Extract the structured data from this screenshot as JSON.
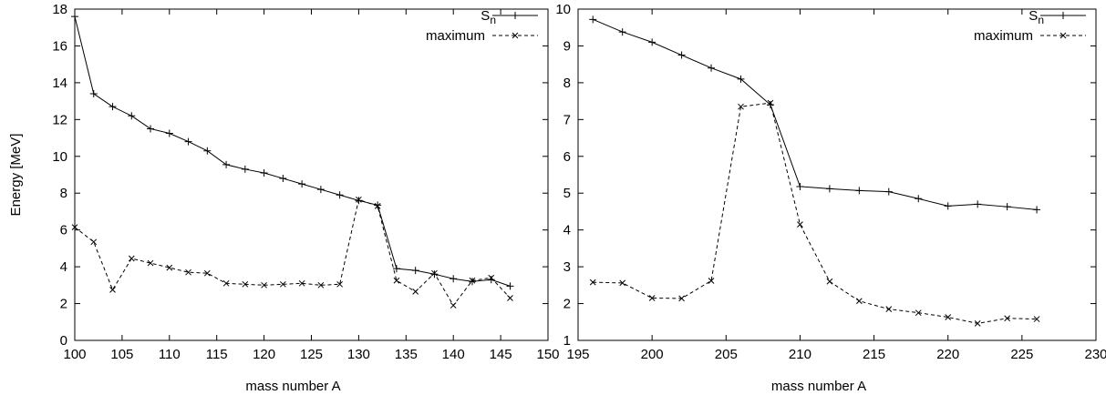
{
  "chart_data": [
    {
      "type": "line",
      "xlabel": "mass number A",
      "ylabel": "Energy [MeV]",
      "xlim": [
        100,
        150
      ],
      "ylim": [
        0,
        18
      ],
      "xticks": [
        100,
        105,
        110,
        115,
        120,
        125,
        130,
        135,
        140,
        145,
        150
      ],
      "yticks": [
        0,
        2,
        4,
        6,
        8,
        10,
        12,
        14,
        16,
        18
      ],
      "grid": false,
      "legend_position": "top-right",
      "series": [
        {
          "name": "S",
          "name_sub": "n",
          "style": "solid",
          "marker": "+",
          "x": [
            100,
            102,
            104,
            106,
            108,
            110,
            112,
            114,
            116,
            118,
            120,
            122,
            124,
            126,
            128,
            130,
            132,
            134,
            136,
            138,
            140,
            142,
            144,
            146
          ],
          "y": [
            17.6,
            13.4,
            12.7,
            12.2,
            11.5,
            11.25,
            10.8,
            10.3,
            9.55,
            9.3,
            9.1,
            8.8,
            8.5,
            8.2,
            7.9,
            7.6,
            7.35,
            3.9,
            3.8,
            3.6,
            3.35,
            3.2,
            3.3,
            2.95
          ]
        },
        {
          "name": "maximum",
          "style": "dashed",
          "marker": "x",
          "x": [
            100,
            102,
            104,
            106,
            108,
            110,
            112,
            114,
            116,
            118,
            120,
            122,
            124,
            126,
            128,
            130,
            132,
            134,
            136,
            138,
            140,
            142,
            144,
            146
          ],
          "y": [
            6.15,
            5.35,
            2.75,
            4.45,
            4.2,
            3.95,
            3.7,
            3.65,
            3.1,
            3.05,
            3.0,
            3.05,
            3.1,
            3.0,
            3.05,
            7.65,
            7.3,
            3.25,
            2.65,
            3.65,
            1.9,
            3.25,
            3.4,
            2.3
          ]
        }
      ]
    },
    {
      "type": "line",
      "xlabel": "mass number A",
      "ylabel": "",
      "xlim": [
        195,
        230
      ],
      "ylim": [
        1,
        10
      ],
      "xticks": [
        195,
        200,
        205,
        210,
        215,
        220,
        225,
        230
      ],
      "yticks": [
        1,
        2,
        3,
        4,
        5,
        6,
        7,
        8,
        9,
        10
      ],
      "grid": false,
      "legend_position": "top-right",
      "series": [
        {
          "name": "S",
          "name_sub": "n",
          "style": "solid",
          "marker": "+",
          "x": [
            196,
            198,
            200,
            202,
            204,
            206,
            208,
            210,
            212,
            214,
            216,
            218,
            220,
            222,
            224,
            226
          ],
          "y": [
            9.72,
            9.38,
            9.1,
            8.75,
            8.4,
            8.1,
            7.4,
            5.18,
            5.12,
            5.07,
            5.04,
            4.85,
            4.65,
            4.7,
            4.63,
            4.55
          ]
        },
        {
          "name": "maximum",
          "style": "dashed",
          "marker": "x",
          "x": [
            196,
            198,
            200,
            202,
            204,
            206,
            208,
            210,
            212,
            214,
            216,
            218,
            220,
            222,
            224,
            226
          ],
          "y": [
            2.58,
            2.56,
            2.15,
            2.14,
            2.62,
            7.35,
            7.45,
            4.15,
            2.6,
            2.07,
            1.85,
            1.75,
            1.63,
            1.46,
            1.6,
            1.58
          ]
        }
      ]
    }
  ]
}
